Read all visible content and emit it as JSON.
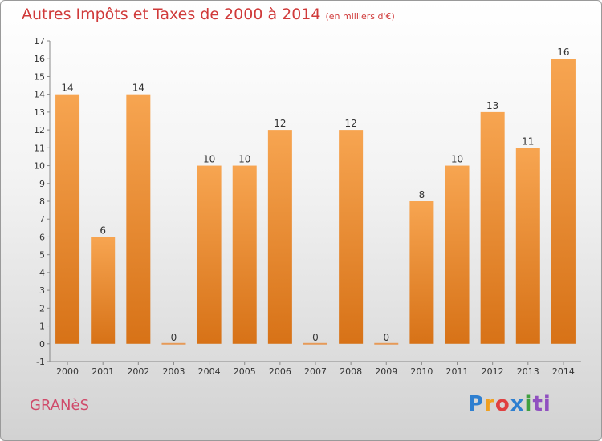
{
  "chart_data": {
    "type": "bar",
    "title": "Autres Impôts et Taxes de 2000 à 2014",
    "unit": "(en milliers d'€)",
    "categories": [
      "2000",
      "2001",
      "2002",
      "2003",
      "2004",
      "2005",
      "2006",
      "2007",
      "2008",
      "2009",
      "2010",
      "2011",
      "2012",
      "2013",
      "2014"
    ],
    "values": [
      14,
      6,
      14,
      0,
      10,
      10,
      12,
      0,
      12,
      0,
      8,
      10,
      13,
      11,
      16
    ],
    "data_labels": [
      "14",
      "6",
      "14",
      "0",
      "10",
      "10",
      "12",
      "0",
      "12",
      "0",
      "8",
      "10",
      "13",
      "11",
      "16"
    ],
    "ylim": [
      -1,
      17
    ],
    "yticks": [
      "-1",
      "0",
      "1",
      "2",
      "3",
      "4",
      "5",
      "6",
      "7",
      "8",
      "9",
      "10",
      "11",
      "12",
      "13",
      "14",
      "15",
      "16",
      "17"
    ],
    "grid": false,
    "colors": {
      "bar_top": "#f7a551",
      "bar_bottom": "#d77217",
      "zero_bar": "#e69a58"
    }
  },
  "commune": "GRANèS",
  "logo": [
    "P",
    "r",
    "o",
    "x",
    "i",
    "ti"
  ]
}
